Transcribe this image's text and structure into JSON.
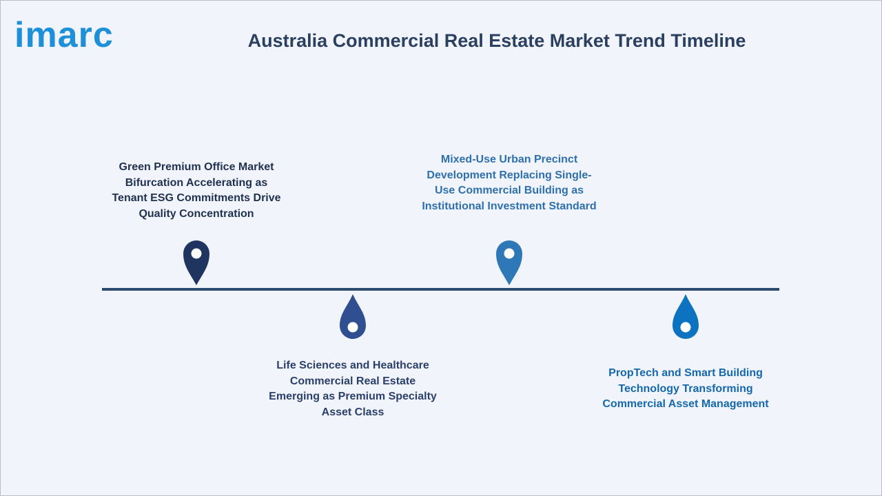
{
  "logo": "imarc",
  "title": "Australia Commercial Real Estate Market Trend Timeline",
  "timeline": [
    {
      "label": "Green Premium Office Market Bifurcation Accelerating as Tenant ESG Commitments Drive Quality Concentration"
    },
    {
      "label": "Life Sciences and Healthcare Commercial Real Estate Emerging as Premium Specialty Asset Class"
    },
    {
      "label": "Mixed-Use Urban Precinct Development Replacing Single-Use Commercial Building as Institutional Investment Standard"
    },
    {
      "label": "PropTech and Smart Building Technology Transforming Commercial Asset Management"
    }
  ]
}
